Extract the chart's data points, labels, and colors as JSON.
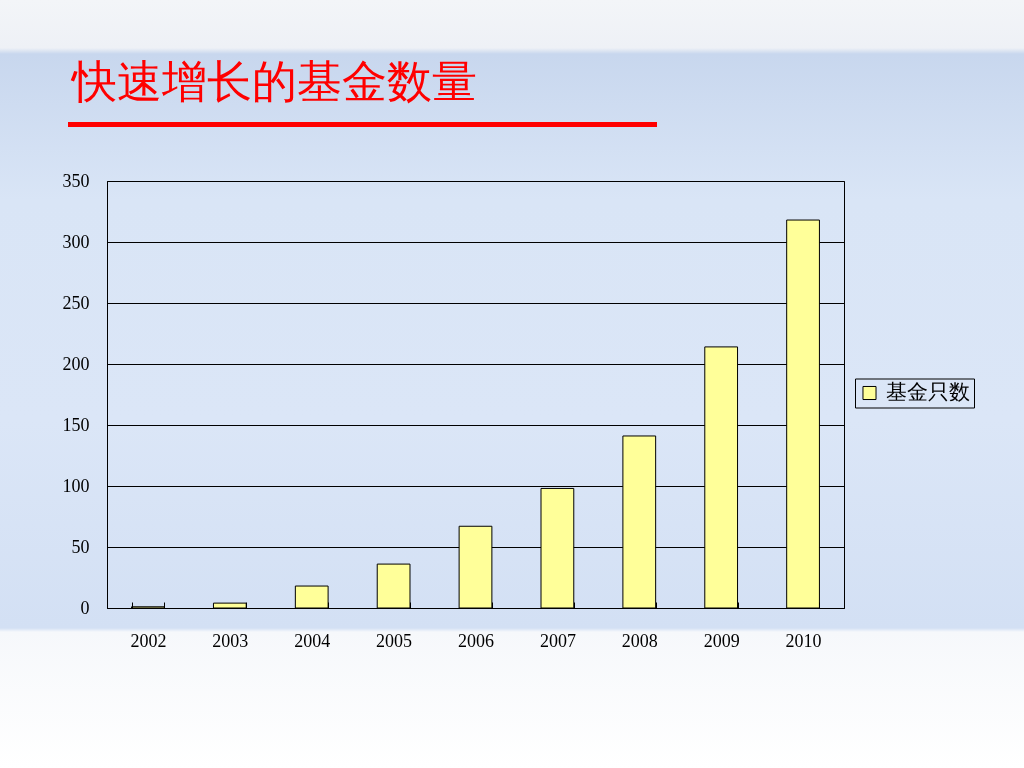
{
  "chart_data": {
    "type": "bar",
    "title": "快速增长的基金数量",
    "categories": [
      "2002",
      "2003",
      "2004",
      "2005",
      "2006",
      "2007",
      "2008",
      "2009",
      "2010"
    ],
    "series": [
      {
        "name": "基金只数",
        "color": "#ffff99",
        "values": [
          1,
          4,
          18,
          36,
          67,
          98,
          141,
          214,
          318
        ]
      }
    ],
    "ylim": [
      0,
      350
    ],
    "yticks": [
      0,
      50,
      100,
      150,
      200,
      250,
      300,
      350
    ],
    "grid": "y",
    "legend": "right"
  }
}
